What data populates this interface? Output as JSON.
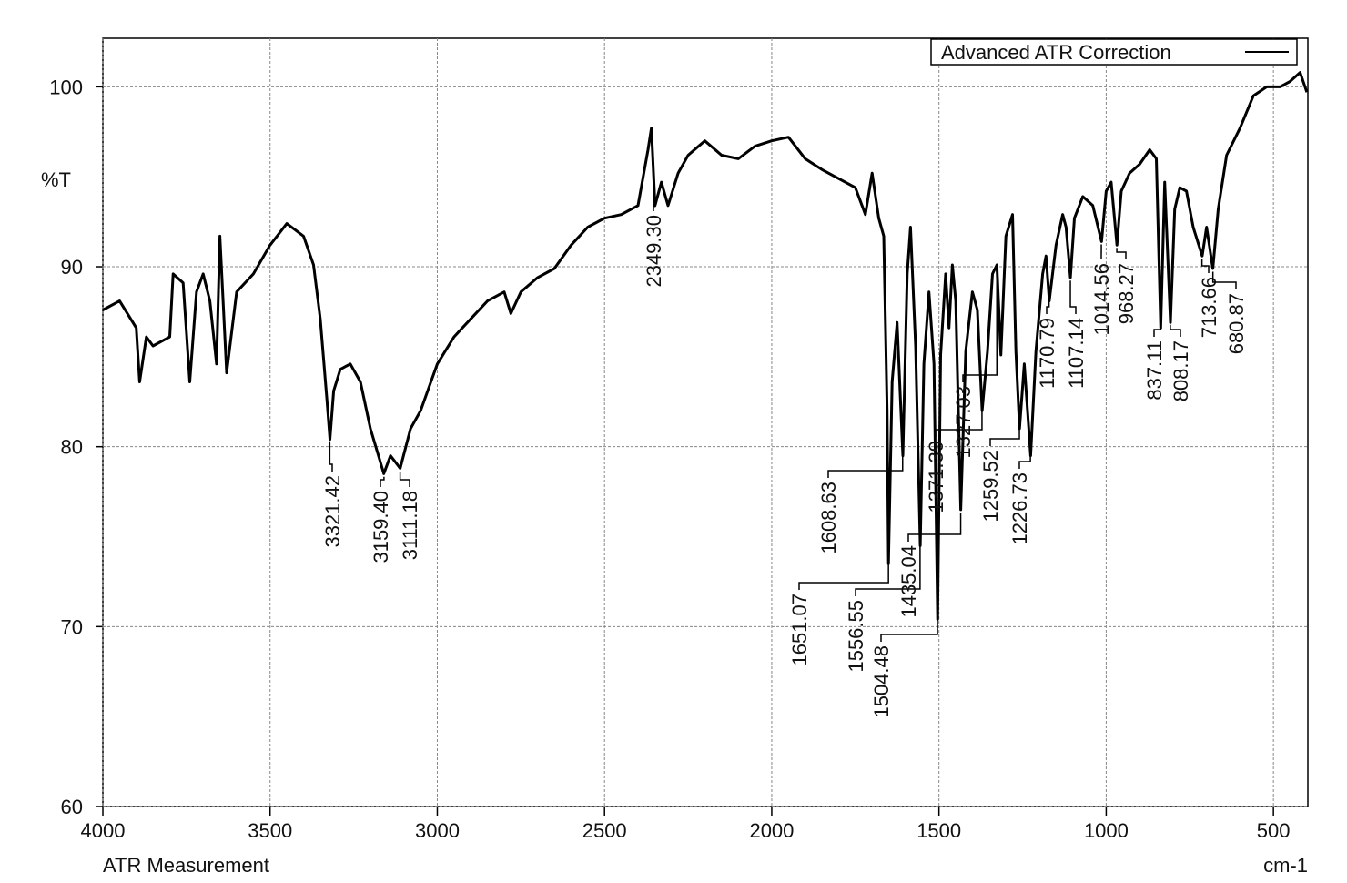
{
  "chart_data": {
    "type": "line",
    "y_label": "%T",
    "x_caption": "ATR Measurement",
    "x_unit": "cm-1",
    "xlim": [
      4000,
      397
    ],
    "ylim": [
      60,
      102.7
    ],
    "xticks": [
      4000,
      3500,
      3000,
      2500,
      2000,
      1500,
      1000,
      500
    ],
    "yticks": [
      60,
      70,
      80,
      90,
      100
    ],
    "grid": true,
    "legend": "upper right",
    "x": [
      4000,
      3950,
      3900,
      3890,
      3870,
      3850,
      3800,
      3790,
      3760,
      3740,
      3720,
      3700,
      3680,
      3660,
      3650,
      3630,
      3600,
      3550,
      3500,
      3450,
      3400,
      3370,
      3350,
      3330,
      3321,
      3310,
      3290,
      3260,
      3230,
      3200,
      3160,
      3140,
      3111,
      3080,
      3050,
      3000,
      2950,
      2900,
      2850,
      2800,
      2780,
      2750,
      2700,
      2650,
      2600,
      2550,
      2500,
      2450,
      2400,
      2370,
      2360,
      2349,
      2330,
      2310,
      2280,
      2250,
      2200,
      2150,
      2100,
      2050,
      2000,
      1950,
      1900,
      1850,
      1800,
      1750,
      1720,
      1700,
      1680,
      1665,
      1655,
      1651,
      1640,
      1625,
      1608,
      1595,
      1585,
      1570,
      1556,
      1545,
      1530,
      1515,
      1504,
      1495,
      1480,
      1470,
      1460,
      1450,
      1435,
      1420,
      1400,
      1385,
      1371,
      1355,
      1340,
      1327,
      1315,
      1300,
      1280,
      1270,
      1259,
      1245,
      1226,
      1210,
      1190,
      1180,
      1170,
      1150,
      1130,
      1120,
      1107,
      1095,
      1070,
      1040,
      1014,
      1000,
      985,
      968,
      955,
      930,
      900,
      870,
      850,
      837,
      825,
      808,
      795,
      780,
      760,
      740,
      713,
      700,
      681,
      665,
      640,
      600,
      560,
      520,
      480,
      450,
      420,
      400
    ],
    "series": [
      {
        "name": "Advanced ATR Correction",
        "color": "#000000",
        "values": [
          87.6,
          88.1,
          86.6,
          83.6,
          86.1,
          85.6,
          86.1,
          89.6,
          89.1,
          83.6,
          88.6,
          89.6,
          88.1,
          84.6,
          91.7,
          84.1,
          88.6,
          89.6,
          91.2,
          92.4,
          91.7,
          90.1,
          87.1,
          82.6,
          80.4,
          83.1,
          84.3,
          84.6,
          83.6,
          81.0,
          78.5,
          79.5,
          78.8,
          81.0,
          82.0,
          84.6,
          86.1,
          87.1,
          88.1,
          88.6,
          87.4,
          88.6,
          89.4,
          89.9,
          91.2,
          92.2,
          92.7,
          92.9,
          93.4,
          96.5,
          97.7,
          93.4,
          94.7,
          93.4,
          95.2,
          96.2,
          97.0,
          96.2,
          96.0,
          96.7,
          97.0,
          97.2,
          96.0,
          95.4,
          94.9,
          94.4,
          92.9,
          95.2,
          92.7,
          91.7,
          82.0,
          73.5,
          83.6,
          86.9,
          79.5,
          89.6,
          92.2,
          85.6,
          74.5,
          84.6,
          88.6,
          84.6,
          70.4,
          85.1,
          89.6,
          86.6,
          90.1,
          88.1,
          76.5,
          85.3,
          88.6,
          87.6,
          82.0,
          85.3,
          89.6,
          90.1,
          85.1,
          91.7,
          92.9,
          85.3,
          81.0,
          84.6,
          79.5,
          85.3,
          89.6,
          90.6,
          88.1,
          91.2,
          92.9,
          92.2,
          89.4,
          92.7,
          93.9,
          93.4,
          91.4,
          94.2,
          94.7,
          91.2,
          94.2,
          95.2,
          95.7,
          96.5,
          96.0,
          86.6,
          94.7,
          86.9,
          93.2,
          94.4,
          94.2,
          92.2,
          90.6,
          92.2,
          89.9,
          93.2,
          96.2,
          97.7,
          99.5,
          100.0,
          100.0,
          100.3,
          100.8,
          99.7
        ]
      }
    ],
    "peaks": [
      3321.42,
      {
        "value": 3159.4,
        "label": "3159.40"
      },
      3111.18,
      {
        "value": 2349.3,
        "label": "2349.30"
      },
      1608.63,
      1651.07,
      1556.55,
      1504.48,
      1435.04,
      1371.39,
      1327.03,
      1259.52,
      1226.73,
      1170.79,
      1107.14,
      1014.56,
      968.27,
      837.11,
      808.17,
      713.66,
      680.87
    ]
  }
}
